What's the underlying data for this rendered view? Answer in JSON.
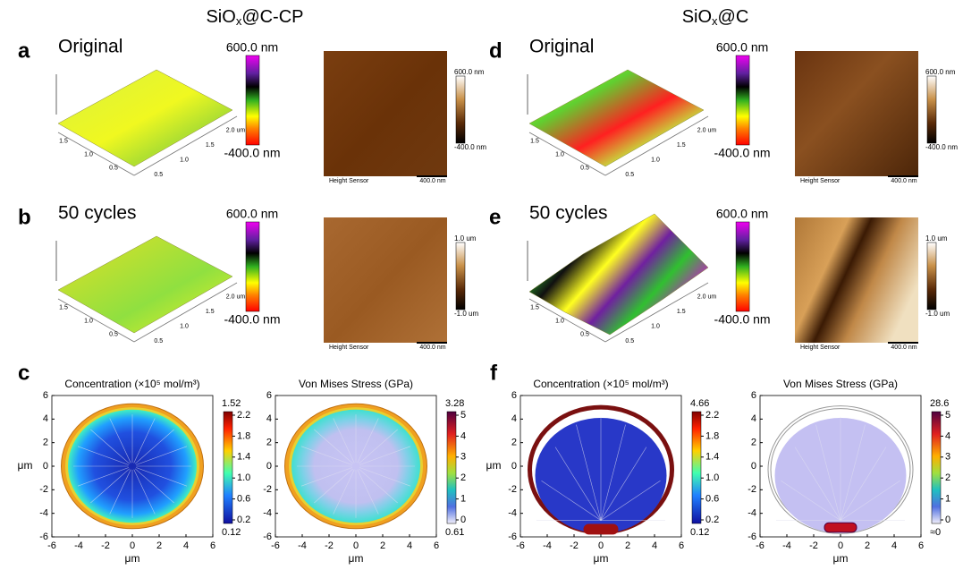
{
  "columns": [
    {
      "title": [
        "SiO",
        "x",
        "@C-CP"
      ]
    },
    {
      "title": [
        "SiO",
        "x",
        "@C"
      ]
    }
  ],
  "panels": [
    {
      "letter": "a",
      "label": "Original",
      "scale": {
        "max": "600.0 nm",
        "min": "-400.0 nm"
      },
      "image": {
        "max": "600.0 nm",
        "min": "-400.0 nm",
        "caption": "Height Sensor",
        "scalebar": "400.0 nm"
      },
      "ticks": [
        "1.5",
        "1.0",
        "0.5",
        "0.5",
        "1.0",
        "1.5",
        "2.0 um"
      ]
    },
    {
      "letter": "b",
      "label": "50 cycles",
      "scale": {
        "max": "600.0 nm",
        "min": "-400.0 nm"
      },
      "image": {
        "max": "1.0 um",
        "min": "-1.0 um",
        "caption": "Height Sensor",
        "scalebar": "400.0 nm"
      },
      "ticks": [
        "1.5",
        "1.0",
        "0.5",
        "0.5",
        "1.0",
        "1.5",
        "2.0 um"
      ]
    },
    {
      "letter": "d",
      "label": "Original",
      "scale": {
        "max": "600.0 nm",
        "min": "-400.0 nm"
      },
      "image": {
        "max": "600.0 nm",
        "min": "-400.0 nm",
        "caption": "Height Sensor",
        "scalebar": "400.0 nm"
      },
      "ticks": [
        "1.5",
        "1.0",
        "0.5",
        "0.5",
        "1.0",
        "1.5",
        "2.0 um"
      ]
    },
    {
      "letter": "e",
      "label": "50 cycles",
      "scale": {
        "max": "600.0 nm",
        "min": "-400.0 nm"
      },
      "image": {
        "max": "1.0 um",
        "min": "-1.0 um",
        "caption": "Height Sensor",
        "scalebar": "400.0 nm"
      },
      "ticks": [
        "1.5",
        "1.0",
        "0.5",
        "0.5",
        "1.0",
        "1.5",
        "2.0 um"
      ]
    }
  ],
  "plots": [
    {
      "letter": "c",
      "title": "Concentration (×10⁵ mol/m³)",
      "xlabel": "μm",
      "ylabel": "μm",
      "xticks": [
        "-6",
        "-4",
        "-2",
        "0",
        "2",
        "4",
        "6"
      ],
      "yticks": [
        "6",
        "4",
        "2",
        "0",
        "-2",
        "-4",
        "-6"
      ],
      "cbar_max": "1.52",
      "cbar_min": "0.12",
      "cbar_ticks": [
        "2.2",
        "1.8",
        "1.4",
        "1.0",
        "0.6",
        "0.2"
      ]
    },
    {
      "title": "Von Mises Stress (GPa)",
      "xlabel": "μm",
      "xticks": [
        "-6",
        "-4",
        "-2",
        "0",
        "2",
        "4",
        "6"
      ],
      "yticks": [
        "6",
        "4",
        "2",
        "0",
        "-2",
        "-4",
        "-6"
      ],
      "cbar_max": "3.28",
      "cbar_min": "0.61",
      "cbar_ticks": [
        "5",
        "4",
        "3",
        "2",
        "1",
        "0"
      ]
    },
    {
      "letter": "f",
      "title": "Concentration (×10⁵ mol/m³)",
      "xlabel": "μm",
      "ylabel": "μm",
      "xticks": [
        "-6",
        "-4",
        "-2",
        "0",
        "2",
        "4",
        "6"
      ],
      "yticks": [
        "6",
        "4",
        "2",
        "0",
        "-2",
        "-4",
        "-6"
      ],
      "cbar_max": "4.66",
      "cbar_min": "0.12",
      "cbar_ticks": [
        "2.2",
        "1.8",
        "1.4",
        "1.0",
        "0.6",
        "0.2"
      ]
    },
    {
      "title": "Von Mises Stress (GPa)",
      "xlabel": "μm",
      "xticks": [
        "-6",
        "-4",
        "-2",
        "0",
        "2",
        "4",
        "6"
      ],
      "yticks": [
        "6",
        "4",
        "2",
        "0",
        "-2",
        "-4",
        "-6"
      ],
      "cbar_max": "28.6",
      "cbar_min": "≈0",
      "cbar_ticks": [
        "5",
        "4",
        "3",
        "2",
        "1",
        "0"
      ]
    }
  ]
}
